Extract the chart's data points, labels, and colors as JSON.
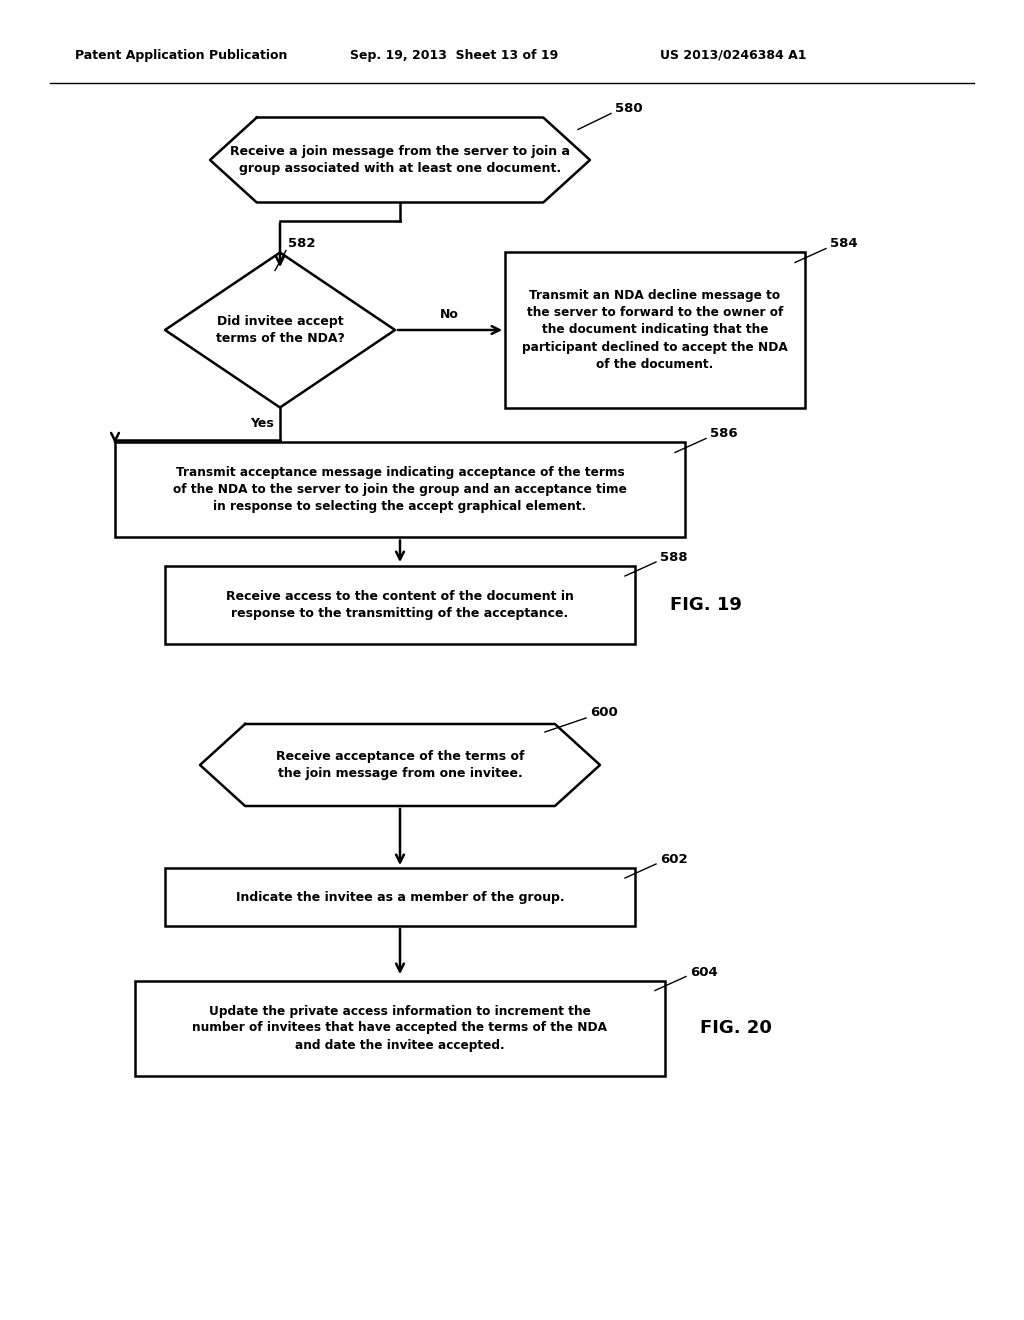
{
  "header_left": "Patent Application Publication",
  "header_mid": "Sep. 19, 2013  Sheet 13 of 19",
  "header_right": "US 2013/0246384 A1",
  "background_color": "#ffffff",
  "fig19_label": "FIG. 19",
  "fig20_label": "FIG. 20",
  "page_width": 10.24,
  "page_height": 13.2,
  "lw": 1.8
}
